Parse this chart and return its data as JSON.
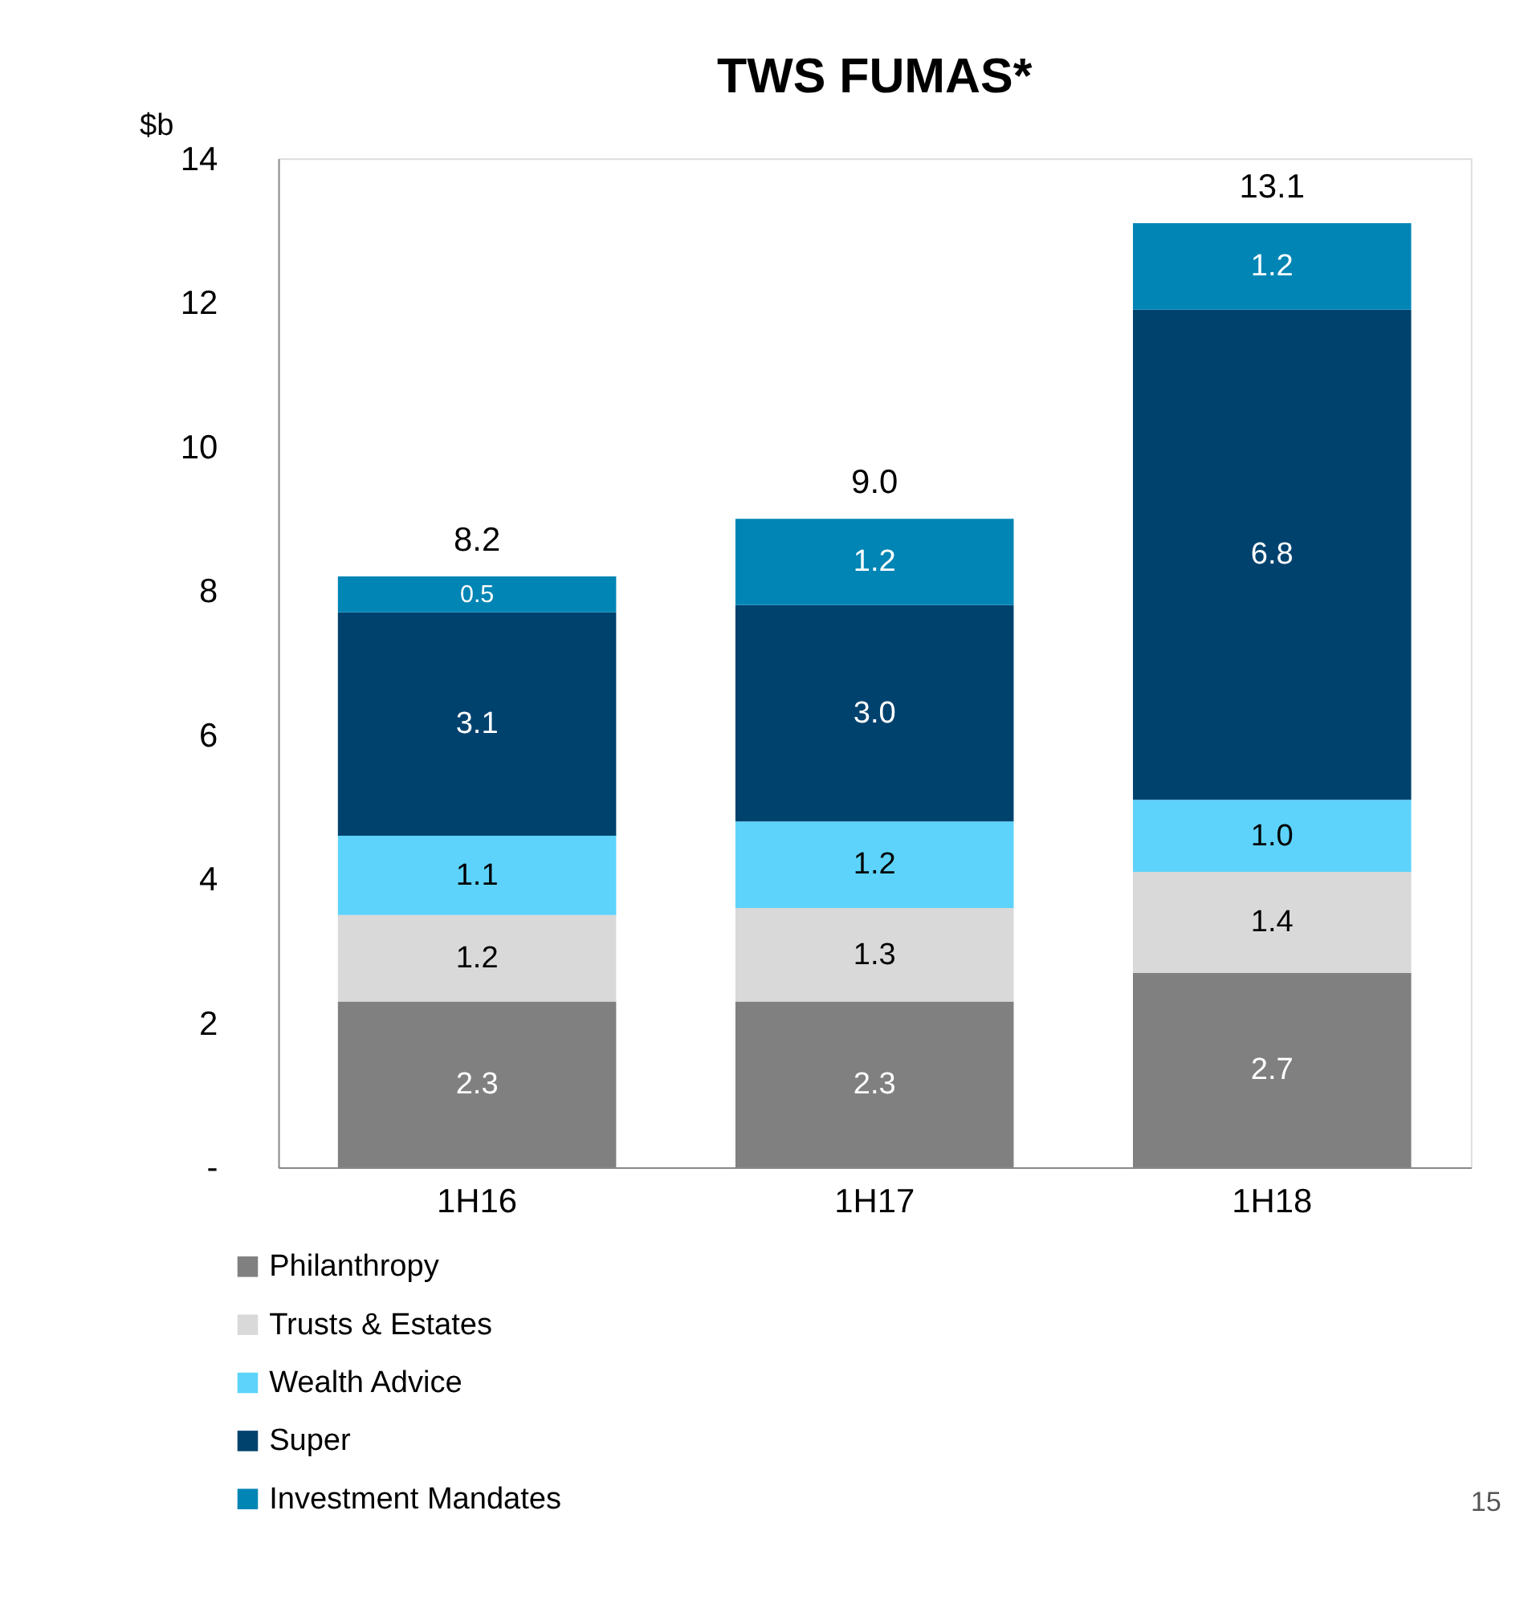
{
  "chart_data": {
    "type": "bar",
    "title": "TWS FUMAS*",
    "ylabel": "$b",
    "stacked": true,
    "categories": [
      "1H16",
      "1H17",
      "1H18"
    ],
    "series": [
      {
        "name": "Philanthropy",
        "color": "#808080",
        "values": [
          2.3,
          2.3,
          2.7
        ],
        "value_labels": [
          "2.3",
          "2.3",
          "2.7"
        ]
      },
      {
        "name": "Trusts & Estates",
        "color": "#d9d9d9",
        "values": [
          1.2,
          1.3,
          1.4
        ],
        "value_labels": [
          "1.2",
          "1.3",
          "1.4"
        ]
      },
      {
        "name": "Wealth Advice",
        "color": "#5dd3fb",
        "values": [
          1.1,
          1.2,
          1.0
        ],
        "value_labels": [
          "1.1",
          "1.2",
          "1.0"
        ]
      },
      {
        "name": "Super",
        "color": "#00426e",
        "values": [
          3.1,
          3.0,
          6.8
        ],
        "value_labels": [
          "3.1",
          "3.0",
          "6.8"
        ]
      },
      {
        "name": "Investment Mandates",
        "color": "#0085b5",
        "values": [
          0.5,
          1.2,
          1.2
        ],
        "value_labels": [
          "0.5",
          "1.2",
          "1.2"
        ]
      }
    ],
    "totals": [
      "8.2",
      "9.0",
      "13.1"
    ],
    "ylim": [
      0,
      14
    ],
    "yticks": [
      {
        "value": 0,
        "label": "-"
      },
      2,
      4,
      6,
      8,
      10,
      12,
      14
    ],
    "grid": false,
    "legend": "bottom left",
    "annotations": [
      "15"
    ]
  }
}
